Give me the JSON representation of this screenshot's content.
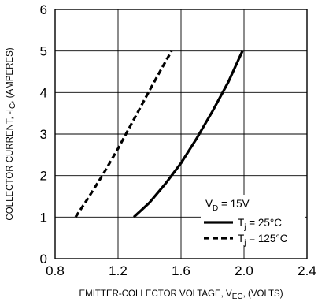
{
  "chart_data": {
    "type": "line",
    "title": "",
    "xlabel_main": "EMITTER-COLLECTOR VOLTAGE, V",
    "xlabel_sub": "EC",
    "xlabel_tail": ", (VOLTS)",
    "ylabel_main": "COLLECTOR CURRENT, -I",
    "ylabel_sub": "C",
    "ylabel_tail": ", (AMPERES)",
    "xlim": [
      0.8,
      2.4
    ],
    "ylim": [
      0,
      6
    ],
    "xticks": [
      "0.8",
      "1.2",
      "1.6",
      "2.0",
      "2.4"
    ],
    "yticks": [
      "0",
      "1",
      "2",
      "3",
      "4",
      "5",
      "6"
    ],
    "grid": true,
    "legend": {
      "placement": "bottom-right",
      "condition_main": "V",
      "condition_sub": "D",
      "condition_tail": " = 15V"
    },
    "series": [
      {
        "name_main": "T",
        "name_sub": "j",
        "name_tail": " = 25°C",
        "style": "solid",
        "points": [
          [
            1.3,
            1.0
          ],
          [
            1.4,
            1.35
          ],
          [
            1.5,
            1.8
          ],
          [
            1.6,
            2.3
          ],
          [
            1.7,
            2.9
          ],
          [
            1.8,
            3.55
          ],
          [
            1.9,
            4.25
          ],
          [
            1.99,
            5.0
          ]
        ]
      },
      {
        "name_main": "T",
        "name_sub": "j",
        "name_tail": " = 125°C",
        "style": "dashed",
        "points": [
          [
            0.93,
            1.0
          ],
          [
            1.0,
            1.4
          ],
          [
            1.1,
            2.0
          ],
          [
            1.2,
            2.65
          ],
          [
            1.3,
            3.35
          ],
          [
            1.4,
            4.05
          ],
          [
            1.48,
            4.6
          ],
          [
            1.54,
            5.0
          ]
        ]
      }
    ],
    "colors": {
      "line": "#000000",
      "grid": "#000000",
      "background": "#ffffff"
    }
  }
}
